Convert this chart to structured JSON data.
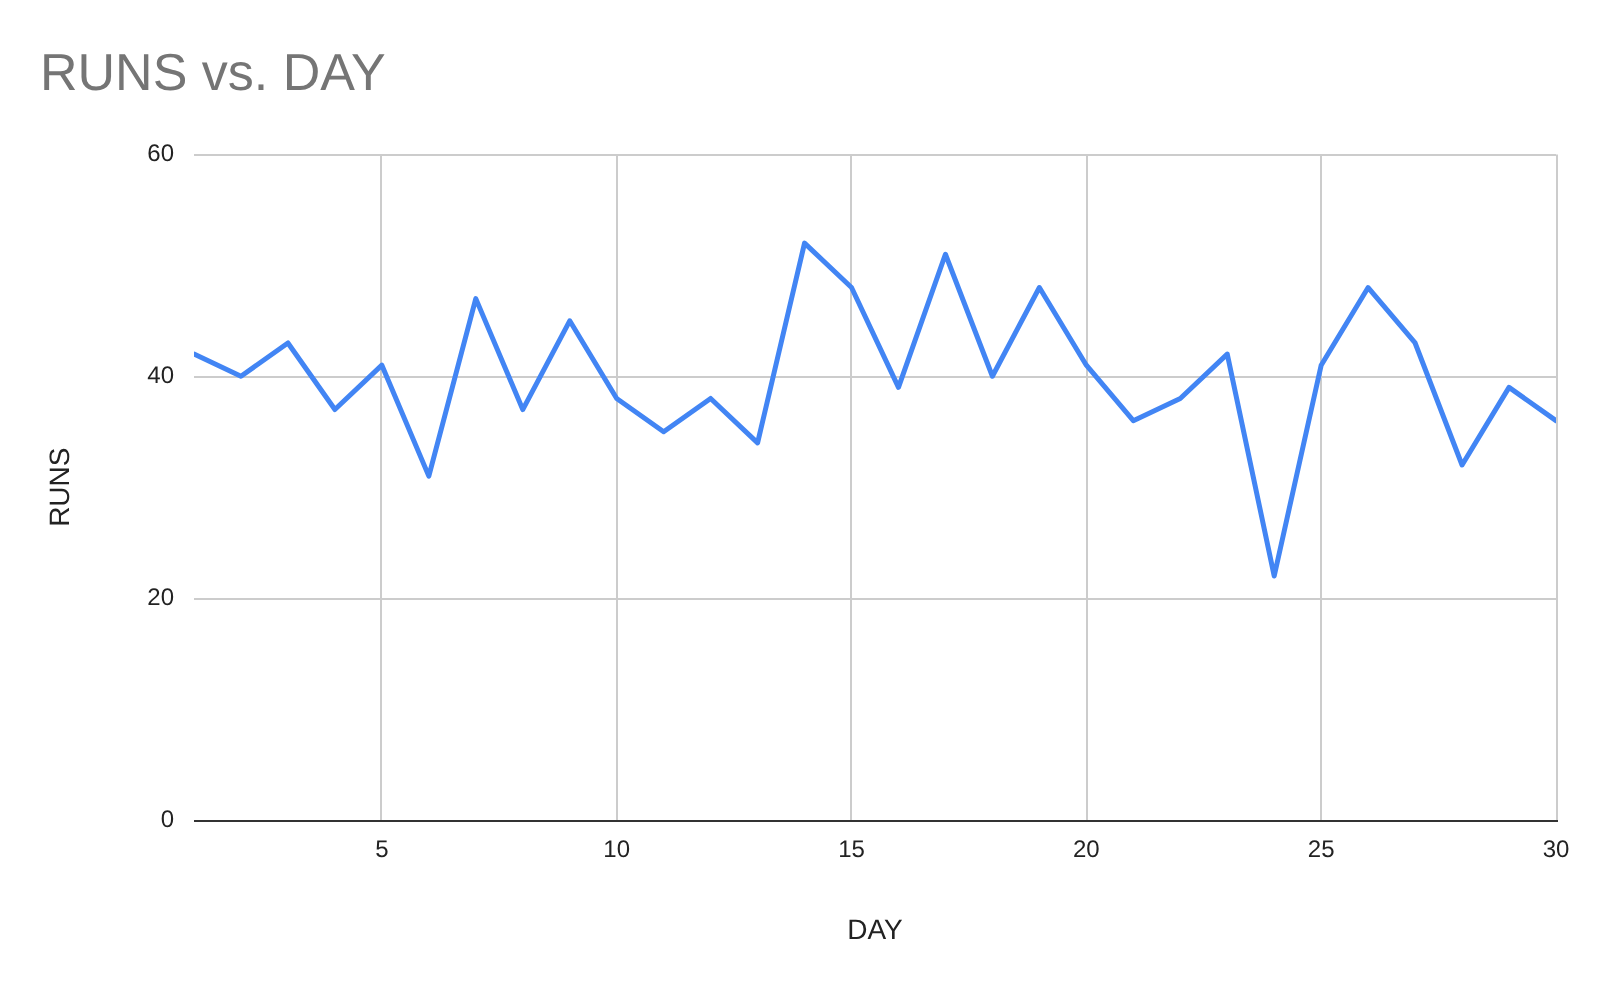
{
  "chart_data": {
    "type": "line",
    "title": "RUNS vs. DAY",
    "xlabel": "DAY",
    "ylabel": "RUNS",
    "x": [
      1,
      2,
      3,
      4,
      5,
      6,
      7,
      8,
      9,
      10,
      11,
      12,
      13,
      14,
      15,
      16,
      17,
      18,
      19,
      20,
      21,
      22,
      23,
      24,
      25,
      26,
      27,
      28,
      29,
      30
    ],
    "series": [
      {
        "color": "#4285f4",
        "values": [
          42,
          40,
          43,
          37,
          41,
          31,
          47,
          37,
          45,
          38,
          35,
          38,
          34,
          52,
          48,
          39,
          51,
          40,
          48,
          41,
          36,
          38,
          42,
          22,
          41,
          48,
          43,
          32,
          39,
          36
        ]
      }
    ],
    "xlim": [
      1,
      30
    ],
    "xticks": [
      5,
      10,
      15,
      20,
      25,
      30
    ],
    "ylim": [
      0,
      60
    ],
    "yticks": [
      0,
      20,
      40,
      60
    ],
    "grid": true,
    "legend": false,
    "marker": "none",
    "line_style": "solid"
  }
}
